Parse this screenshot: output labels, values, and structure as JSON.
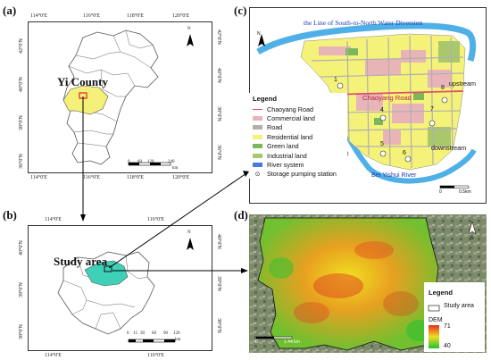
{
  "panels": {
    "a": "(a)",
    "b": "(b)",
    "c": "(c)",
    "d": "(d)"
  },
  "panel_a": {
    "top_ticks": [
      "114°0'E",
      "116°0'E",
      "118°0'E",
      "120°0'E"
    ],
    "bottom_ticks": [
      "114°0'E",
      "116°0'E",
      "118°0'E",
      "120°0'E"
    ],
    "left_ticks": [
      "42°0'N",
      "40°0'N",
      "38°0'N",
      "36°0'N"
    ],
    "right_ticks": [
      "42°0'N",
      "40°0'N",
      "38°0'N",
      "36°0'N"
    ],
    "highlight_label": "Yi County",
    "scale_labels": [
      "0",
      "60",
      "120",
      "240"
    ],
    "scale_unit": "km",
    "north": "N",
    "colors": {
      "highlight": "#f5f07a",
      "box": "#e02020"
    }
  },
  "panel_b": {
    "top_ticks": [
      "114°0'E",
      "116°0'E"
    ],
    "bottom_ticks": [
      "114°0'E",
      "116°0'E"
    ],
    "left_ticks": [
      "40°0'N",
      "39°0'N",
      "38°0'N"
    ],
    "right_ticks": [
      "40°0'N",
      "39°0'N",
      "38°0'N"
    ],
    "highlight_label": "Study area",
    "scale_labels": [
      "0",
      "15",
      "30",
      "60",
      "90",
      "120"
    ],
    "scale_unit": "km",
    "north": "N",
    "colors": {
      "highlight": "#3fd0b8"
    }
  },
  "panel_c": {
    "canal_label": "the Line of South-to-North Water Diversion",
    "road_label": "Chaoyang Road",
    "river_label": "Bei Yishui River",
    "upstream": "upstream",
    "downstream": "downstream",
    "stations": [
      "1",
      "2",
      "3",
      "4",
      "5",
      "6",
      "7",
      "8"
    ],
    "scale_labels": [
      "0",
      "0.5"
    ],
    "scale_unit": "km",
    "north": "N",
    "legend": {
      "title": "Legend",
      "items": [
        {
          "label": "Chaoyang Road",
          "kind": "line",
          "color": "#e0506a"
        },
        {
          "label": "Commercial land",
          "kind": "box",
          "color": "#e8b4b8"
        },
        {
          "label": "Road",
          "kind": "box",
          "color": "#b0b0b0"
        },
        {
          "label": "Residential land",
          "kind": "box",
          "color": "#f5f27a"
        },
        {
          "label": "Green land",
          "kind": "box",
          "color": "#7cb85a"
        },
        {
          "label": "Industrial land",
          "kind": "box",
          "color": "#a8c86a"
        },
        {
          "label": "River system",
          "kind": "box",
          "color": "#4a7ae0"
        },
        {
          "label": "Storage pumping station",
          "kind": "symbol",
          "color": "#333333"
        }
      ]
    }
  },
  "panel_d": {
    "legend_title": "Legend",
    "study_area": "Study area",
    "dem_label": "DEM",
    "dem_max": "71",
    "dem_min": "40",
    "scale_labels": [
      "0",
      "1.44 km"
    ],
    "north": "N"
  }
}
